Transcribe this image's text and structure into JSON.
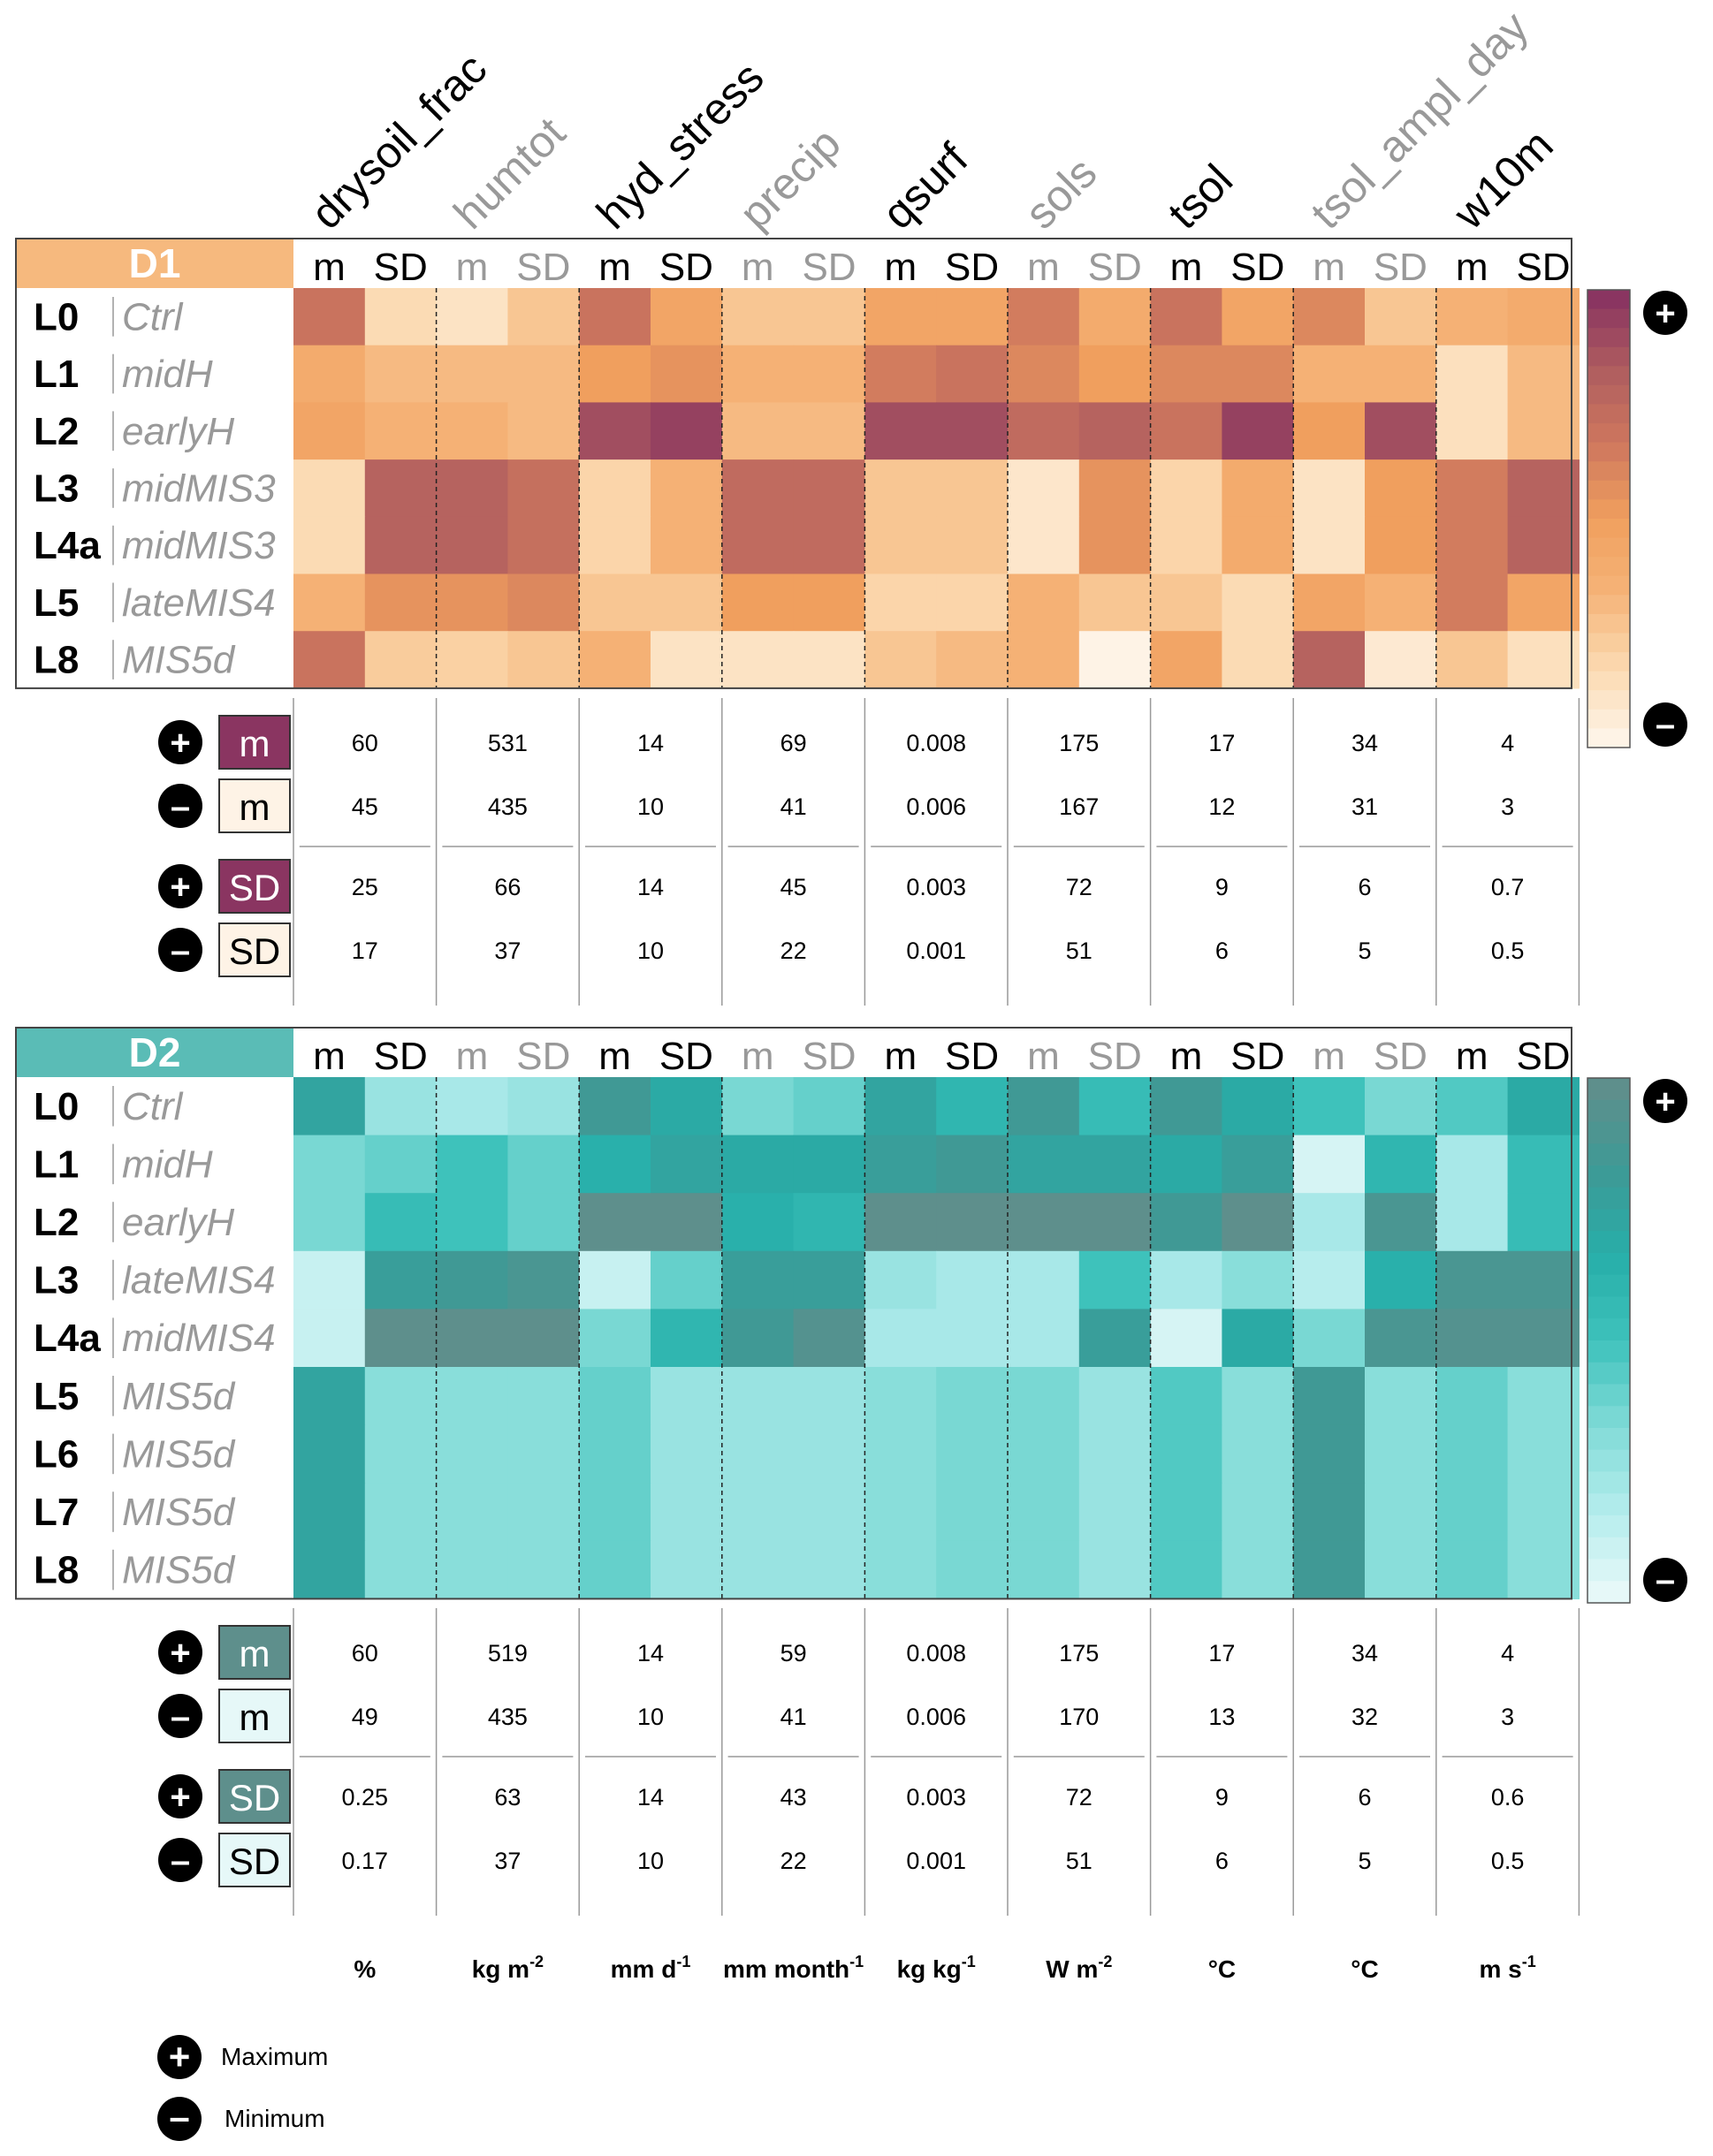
{
  "chart_data": {
    "type": "heatmap",
    "variables": [
      {
        "name": "drysoil_frac",
        "color": "#000000",
        "unit": "%"
      },
      {
        "name": "humtot",
        "color": "#999999",
        "unit": "kg m-2"
      },
      {
        "name": "hyd_stress",
        "color": "#000000",
        "unit": "mm d-1"
      },
      {
        "name": "precip",
        "color": "#999999",
        "unit": "mm month-1"
      },
      {
        "name": "qsurf",
        "color": "#000000",
        "unit": "kg kg-1"
      },
      {
        "name": "sols",
        "color": "#999999",
        "unit": "W m-2"
      },
      {
        "name": "tsol",
        "color": "#000000",
        "unit": "°C"
      },
      {
        "name": "tsol_ampl_day",
        "color": "#999999",
        "unit": "°C"
      },
      {
        "name": "w10m",
        "color": "#000000",
        "unit": "m s-1"
      }
    ],
    "unit_parts": [
      {
        "base": "%",
        "sup": ""
      },
      {
        "base": "kg m",
        "sup": "-2"
      },
      {
        "base": "mm d",
        "sup": "-1"
      },
      {
        "base": "mm month",
        "sup": "-1"
      },
      {
        "base": "kg kg",
        "sup": "-1"
      },
      {
        "base": "W m",
        "sup": "-2"
      },
      {
        "base": "°C",
        "sup": ""
      },
      {
        "base": "°C",
        "sup": ""
      },
      {
        "base": "m s",
        "sup": "-1"
      }
    ],
    "sub_labels": [
      "m",
      "SD"
    ],
    "panels": [
      {
        "name": "D1",
        "header_color": "#F6B97E",
        "colors": {
          "max": "#8A3561",
          "min": "#FEF3E6"
        },
        "levels": [
          "L0",
          "L1",
          "L2",
          "L3",
          "L4a",
          "L5",
          "L8"
        ],
        "level_labels": [
          "Ctrl",
          "midH",
          "earlyH",
          "midMIS3",
          "midMIS3",
          "lateMIS4",
          "MIS5d"
        ],
        "intensity": [
          [
            0.7,
            0.15,
            0.1,
            0.25,
            0.7,
            0.45,
            0.25,
            0.25,
            0.45,
            0.45,
            0.65,
            0.4,
            0.7,
            0.45,
            0.6,
            0.25,
            0.35,
            0.4
          ],
          [
            0.4,
            0.3,
            0.3,
            0.3,
            0.5,
            0.55,
            0.35,
            0.35,
            0.65,
            0.7,
            0.6,
            0.5,
            0.6,
            0.6,
            0.35,
            0.35,
            0.12,
            0.3
          ],
          [
            0.45,
            0.35,
            0.35,
            0.3,
            0.9,
            0.95,
            0.3,
            0.3,
            0.9,
            0.9,
            0.75,
            0.8,
            0.7,
            0.95,
            0.5,
            0.9,
            0.12,
            0.3
          ],
          [
            0.15,
            0.8,
            0.8,
            0.72,
            0.18,
            0.35,
            0.75,
            0.75,
            0.25,
            0.25,
            0.08,
            0.55,
            0.18,
            0.4,
            0.1,
            0.5,
            0.65,
            0.8
          ],
          [
            0.15,
            0.8,
            0.8,
            0.72,
            0.18,
            0.35,
            0.75,
            0.75,
            0.25,
            0.25,
            0.08,
            0.55,
            0.18,
            0.4,
            0.1,
            0.5,
            0.65,
            0.8
          ],
          [
            0.35,
            0.55,
            0.55,
            0.6,
            0.25,
            0.25,
            0.5,
            0.5,
            0.18,
            0.18,
            0.35,
            0.25,
            0.25,
            0.15,
            0.45,
            0.35,
            0.65,
            0.45
          ],
          [
            0.7,
            0.22,
            0.2,
            0.25,
            0.35,
            0.1,
            0.1,
            0.1,
            0.25,
            0.3,
            0.35,
            0.0,
            0.45,
            0.15,
            0.8,
            0.06,
            0.25,
            0.12
          ]
        ],
        "stats": {
          "m_max": [
            "60",
            "531",
            "14",
            "69",
            "0.008",
            "175",
            "17",
            "34",
            "4"
          ],
          "m_min": [
            "45",
            "435",
            "10",
            "41",
            "0.006",
            "167",
            "12",
            "31",
            "3"
          ],
          "sd_max": [
            "25",
            "66",
            "14",
            "45",
            "0.003",
            "72",
            "9",
            "6",
            "0.7"
          ],
          "sd_min": [
            "17",
            "37",
            "10",
            "22",
            "0.001",
            "51",
            "6",
            "5",
            "0.5"
          ]
        }
      },
      {
        "name": "D2",
        "header_color": "#5ABCB6",
        "colors": {
          "max": "#5E8F8C",
          "min": "#E6F8F8"
        },
        "levels": [
          "L0",
          "L1",
          "L2",
          "L3",
          "L4a",
          "L5",
          "L6",
          "L7",
          "L8"
        ],
        "level_labels": [
          "Ctrl",
          "midH",
          "earlyH",
          "lateMIS4",
          "midMIS4",
          "MIS5d",
          "MIS5d",
          "MIS5d",
          "MIS5d"
        ],
        "intensity": [
          [
            0.75,
            0.25,
            0.2,
            0.25,
            0.85,
            0.7,
            0.35,
            0.4,
            0.75,
            0.6,
            0.85,
            0.55,
            0.85,
            0.7,
            0.5,
            0.35,
            0.45,
            0.7
          ],
          [
            0.35,
            0.4,
            0.5,
            0.4,
            0.65,
            0.75,
            0.7,
            0.7,
            0.8,
            0.85,
            0.75,
            0.75,
            0.7,
            0.8,
            0.05,
            0.6,
            0.2,
            0.55
          ],
          [
            0.35,
            0.55,
            0.5,
            0.4,
            1.0,
            1.0,
            0.65,
            0.6,
            1.0,
            1.0,
            1.0,
            1.0,
            0.85,
            1.0,
            0.2,
            0.9,
            0.2,
            0.55
          ],
          [
            0.1,
            0.8,
            0.85,
            0.9,
            0.1,
            0.4,
            0.8,
            0.8,
            0.25,
            0.2,
            0.2,
            0.5,
            0.2,
            0.3,
            0.15,
            0.65,
            0.9,
            0.9
          ],
          [
            0.1,
            1.0,
            1.0,
            1.0,
            0.35,
            0.6,
            0.85,
            0.95,
            0.2,
            0.2,
            0.2,
            0.8,
            0.05,
            0.7,
            0.35,
            0.9,
            0.95,
            0.95
          ],
          [
            0.75,
            0.3,
            0.3,
            0.3,
            0.4,
            0.25,
            0.25,
            0.25,
            0.3,
            0.35,
            0.35,
            0.25,
            0.45,
            0.3,
            0.85,
            0.3,
            0.4,
            0.3
          ],
          [
            0.75,
            0.3,
            0.3,
            0.3,
            0.4,
            0.25,
            0.25,
            0.25,
            0.3,
            0.35,
            0.35,
            0.25,
            0.45,
            0.3,
            0.85,
            0.3,
            0.4,
            0.3
          ],
          [
            0.75,
            0.3,
            0.3,
            0.3,
            0.4,
            0.25,
            0.25,
            0.25,
            0.3,
            0.35,
            0.35,
            0.25,
            0.45,
            0.3,
            0.85,
            0.3,
            0.4,
            0.3
          ],
          [
            0.75,
            0.3,
            0.3,
            0.3,
            0.4,
            0.25,
            0.25,
            0.25,
            0.3,
            0.35,
            0.35,
            0.25,
            0.45,
            0.3,
            0.85,
            0.3,
            0.4,
            0.3
          ]
        ],
        "stats": {
          "m_max": [
            "60",
            "519",
            "14",
            "59",
            "0.008",
            "175",
            "17",
            "34",
            "4"
          ],
          "m_min": [
            "49",
            "435",
            "10",
            "41",
            "0.006",
            "170",
            "13",
            "32",
            "3"
          ],
          "sd_max": [
            "0.25",
            "63",
            "14",
            "43",
            "0.003",
            "72",
            "9",
            "6",
            "0.6"
          ],
          "sd_min": [
            "0.17",
            "37",
            "10",
            "22",
            "0.001",
            "51",
            "6",
            "5",
            "0.5"
          ]
        }
      }
    ],
    "legend": {
      "max_label": "Maximum",
      "min_label": "Minimum"
    }
  }
}
